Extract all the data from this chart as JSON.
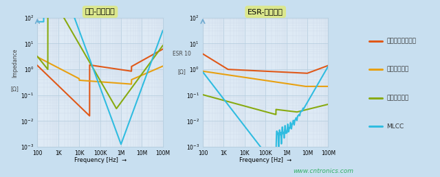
{
  "background_color": "#c8dff0",
  "plot_bg_color": "#deeaf5",
  "grid_color_major": "#b8cfe0",
  "grid_color_minor": "#ccdaea",
  "title1": "阻抗-频率特性",
  "title2": "ESR-频率特性",
  "title_bg": "#dde888",
  "outer_border": "#a0c8e0",
  "ylabel1": "Impedance",
  "ylabel1b": "[Ω]",
  "ylabel2": "ESR 10",
  "ylabel2b": "[Ω]",
  "xlabel": "Frequency [Hz]",
  "freq_ticks": [
    100,
    1000,
    10000,
    100000,
    1000000,
    10000000,
    100000000
  ],
  "freq_labels": [
    "100",
    "1K",
    "10K",
    "100K",
    "1M",
    "10M",
    "100M"
  ],
  "ylim": [
    0.001,
    100
  ],
  "xlim_log": [
    2,
    8
  ],
  "colors": {
    "al_elec": "#e05818",
    "ta_elec": "#e8a010",
    "polymer": "#88aa10",
    "mlcc": "#30bce0"
  },
  "legend_labels": [
    "普通铝电解电容器",
    "钽电解电容器",
    "功能性高分子",
    "MLCC"
  ],
  "watermark": "www.cntronics.com"
}
